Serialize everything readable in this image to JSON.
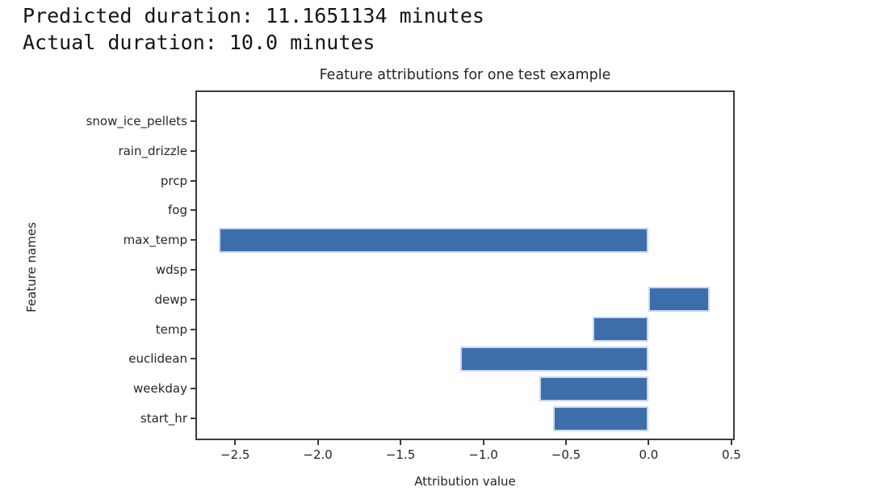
{
  "header": {
    "line1": "Predicted duration: 11.1651134 minutes",
    "line2": "Actual duration: 10.0 minutes"
  },
  "chart_data": {
    "type": "bar",
    "orientation": "horizontal",
    "title": "Feature attributions for one test example",
    "xlabel": "Attribution value",
    "ylabel": "Feature names",
    "categories": [
      "snow_ice_pellets",
      "rain_drizzle",
      "prcp",
      "fog",
      "max_temp",
      "wdsp",
      "dewp",
      "temp",
      "euclidean",
      "weekday",
      "start_hr"
    ],
    "values": [
      0,
      0,
      0,
      0,
      -2.6,
      0,
      0.37,
      -0.34,
      -1.14,
      -0.66,
      -0.58
    ],
    "xlim": [
      -2.74,
      0.52
    ],
    "x_ticks": [
      -2.5,
      -2.0,
      -1.5,
      -1.0,
      -0.5,
      0.0,
      0.5
    ],
    "x_tick_labels": [
      "−2.5",
      "−2.0",
      "−1.5",
      "−1.0",
      "−0.5",
      "0.0",
      "0.5"
    ],
    "grid": false,
    "legend": null,
    "bar_color": "#3d6eac",
    "bar_edge_color": "#c9d8ee",
    "spine_color": "#3b3b3b"
  }
}
